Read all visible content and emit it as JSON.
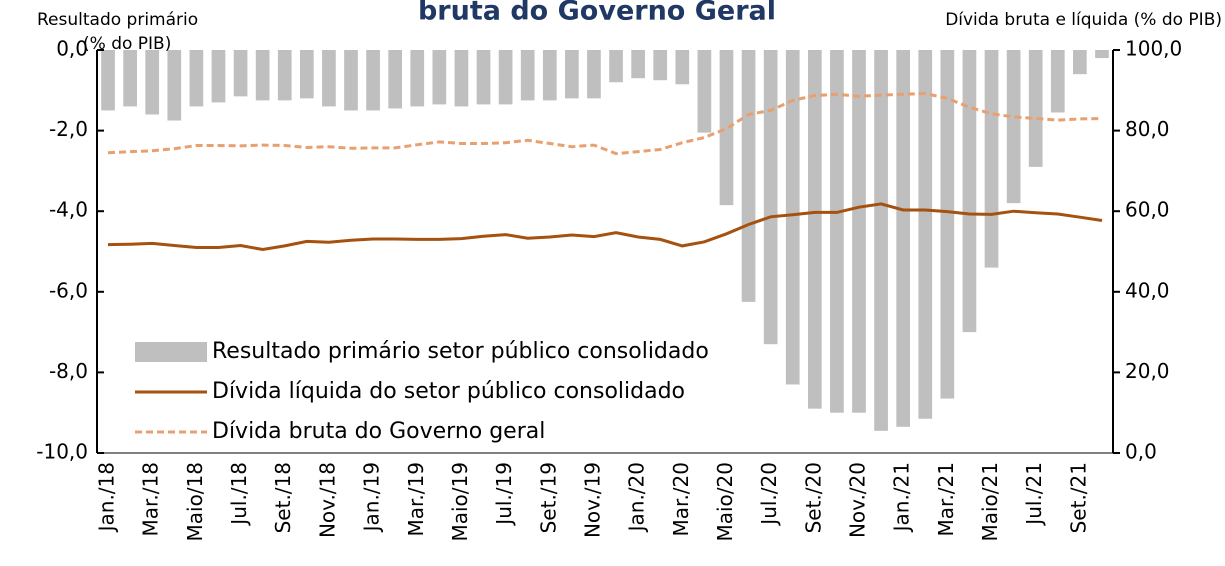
{
  "chart_data": {
    "type": "bar-line",
    "title": "bruta do Governo Geral",
    "y_label": "Resultado primário",
    "y_unit": "(% do PIB)",
    "y2_label": "Dívida bruta e líquida  (% do PIB)",
    "categories": [
      "Jan./18",
      null,
      "Mar./18",
      null,
      "Maio/18",
      null,
      "Jul./18",
      null,
      "Set./18",
      null,
      "Nov./18",
      null,
      "Jan./19",
      null,
      "Mar./19",
      null,
      "Maio/19",
      null,
      "Jul./19",
      null,
      "Set./19",
      null,
      "Nov./19",
      null,
      "Jan./20",
      null,
      "Mar./20",
      null,
      "Maio/20",
      null,
      "Jul./20",
      null,
      "Set./20",
      null,
      "Nov./20",
      null,
      "Jan./21",
      null,
      "Mar./21",
      null,
      "Maio/21",
      null,
      "Jul./21",
      null,
      "Set./21",
      null
    ],
    "series": [
      {
        "name": "Resultado primário setor público consolidado",
        "kind": "bar",
        "color": "#bfbfbf",
        "values": [
          -1.5,
          -1.4,
          -1.6,
          -1.75,
          -1.4,
          -1.3,
          -1.15,
          -1.25,
          -1.25,
          -1.2,
          -1.4,
          -1.5,
          -1.5,
          -1.45,
          -1.4,
          -1.35,
          -1.4,
          -1.35,
          -1.35,
          -1.25,
          -1.25,
          -1.2,
          -1.2,
          -0.8,
          -0.7,
          -0.75,
          -0.85,
          -2.05,
          -3.85,
          -6.25,
          -7.3,
          -8.3,
          -8.9,
          -9.0,
          -9.0,
          -9.45,
          -9.35,
          -9.15,
          -8.65,
          -7.0,
          -5.4,
          -3.8,
          -2.9,
          -1.55,
          -0.6,
          -0.2
        ]
      },
      {
        "name": "Dívida líquida do setor público consolidado",
        "kind": "line",
        "axis": "y2",
        "color": "#a5510f",
        "dash": false,
        "values": [
          51.7,
          51.8,
          52.0,
          51.5,
          51.0,
          51.0,
          51.5,
          50.5,
          51.4,
          52.5,
          52.3,
          52.8,
          53.1,
          53.1,
          53.0,
          53.0,
          53.2,
          53.8,
          54.2,
          53.3,
          53.6,
          54.1,
          53.7,
          54.7,
          53.6,
          53.0,
          51.4,
          52.4,
          54.4,
          56.7,
          58.6,
          59.1,
          59.7,
          59.7,
          61.0,
          61.8,
          60.3,
          60.3,
          59.9,
          59.3,
          59.2,
          60.0,
          59.6,
          59.3,
          58.5,
          57.7
        ]
      },
      {
        "name": "Dívida bruta do Governo geral",
        "kind": "line",
        "axis": "y2",
        "color": "#e8a070",
        "dash": true,
        "values": [
          74.5,
          74.8,
          75.0,
          75.5,
          76.3,
          76.3,
          76.2,
          76.4,
          76.3,
          75.8,
          76.0,
          75.6,
          75.7,
          75.7,
          76.5,
          77.2,
          76.8,
          76.8,
          77.0,
          77.6,
          76.8,
          76.0,
          76.4,
          74.3,
          74.8,
          75.3,
          77.0,
          78.3,
          80.5,
          84.0,
          85.0,
          87.5,
          88.7,
          89.0,
          88.5,
          88.8,
          89.0,
          89.2,
          88.0,
          85.8,
          84.2,
          83.4,
          83.0,
          82.6,
          82.9,
          83.0
        ]
      }
    ],
    "ylim": [
      -10,
      0
    ],
    "yticks": [
      {
        "value": 0,
        "label": "0,0"
      },
      {
        "value": -2,
        "label": "-2,0"
      },
      {
        "value": -4,
        "label": "-4,0"
      },
      {
        "value": -6,
        "label": "-6,0"
      },
      {
        "value": -8,
        "label": "-8,0"
      },
      {
        "value": -10,
        "label": "-10,0"
      }
    ],
    "y2lim": [
      0,
      100
    ],
    "y2ticks": [
      {
        "value": 100,
        "label": "100,0"
      },
      {
        "value": 80,
        "label": "80,0"
      },
      {
        "value": 60,
        "label": "60,0"
      },
      {
        "value": 40,
        "label": "40,0"
      },
      {
        "value": 20,
        "label": "20,0"
      },
      {
        "value": 0,
        "label": "0,0"
      }
    ],
    "legend": "lower-left"
  }
}
